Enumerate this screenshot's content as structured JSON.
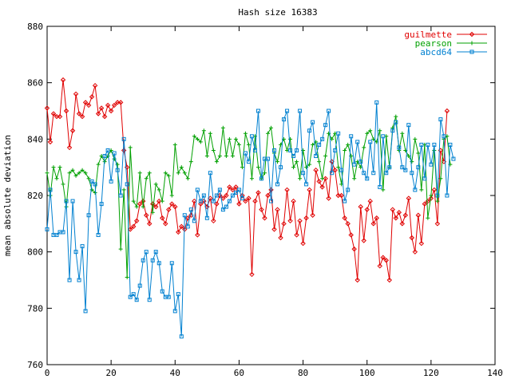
{
  "chart_data": {
    "type": "line",
    "title": "Hash size 16383",
    "xlabel": "",
    "ylabel": "mean absolute deviation",
    "xlim": [
      0,
      140
    ],
    "ylim": [
      760,
      880
    ],
    "xticks": [
      0,
      20,
      40,
      60,
      80,
      100,
      120,
      140
    ],
    "yticks": [
      760,
      780,
      800,
      820,
      840,
      860,
      880
    ],
    "grid": false,
    "legend_position": "top-right",
    "series": [
      {
        "name": "guilmette",
        "color": "#e00000",
        "marker": "diamond",
        "values": [
          851,
          839,
          849,
          848,
          848,
          861,
          850,
          837,
          843,
          856,
          849,
          848,
          853,
          852,
          855,
          859,
          849,
          851,
          848,
          852,
          850,
          852,
          853,
          853,
          836,
          830,
          808,
          809,
          811,
          817,
          818,
          813,
          810,
          817,
          816,
          818,
          812,
          810,
          815,
          817,
          816,
          807,
          809,
          808,
          812,
          813,
          818,
          806,
          817,
          818,
          816,
          819,
          811,
          817,
          820,
          819,
          820,
          823,
          822,
          823,
          817,
          820,
          818,
          819,
          792,
          818,
          821,
          815,
          812,
          820,
          822,
          808,
          815,
          805,
          810,
          822,
          811,
          818,
          806,
          811,
          803,
          812,
          822,
          813,
          829,
          825,
          823,
          826,
          819,
          832,
          829,
          820,
          820,
          812,
          810,
          806,
          801,
          790,
          816,
          804,
          815,
          818,
          810,
          812,
          795,
          798,
          797,
          790,
          815,
          812,
          814,
          810,
          813,
          819,
          805,
          800,
          813,
          803,
          817,
          818,
          819,
          822,
          810,
          836,
          832,
          850
        ]
      },
      {
        "name": "pearson",
        "color": "#00a000",
        "marker": "plus",
        "values": [
          828,
          820,
          830,
          826,
          830,
          824,
          816,
          828,
          829,
          827,
          828,
          829,
          828,
          826,
          822,
          821,
          831,
          834,
          832,
          834,
          836,
          833,
          831,
          801,
          822,
          791,
          837,
          818,
          816,
          828,
          816,
          826,
          828,
          814,
          824,
          822,
          818,
          828,
          827,
          820,
          838,
          828,
          830,
          828,
          826,
          832,
          841,
          840,
          839,
          843,
          834,
          842,
          836,
          832,
          834,
          844,
          834,
          840,
          834,
          840,
          838,
          830,
          842,
          838,
          826,
          841,
          830,
          826,
          828,
          842,
          844,
          835,
          832,
          838,
          840,
          836,
          840,
          830,
          832,
          826,
          836,
          830,
          831,
          838,
          839,
          832,
          826,
          834,
          842,
          840,
          842,
          830,
          824,
          836,
          838,
          834,
          826,
          832,
          830,
          837,
          842,
          843,
          840,
          839,
          843,
          822,
          841,
          830,
          844,
          848,
          836,
          842,
          836,
          834,
          832,
          840,
          835,
          822,
          838,
          812,
          820,
          836,
          818,
          826,
          840,
          841,
          831
        ]
      },
      {
        "name": "abcd64",
        "color": "#0080d0",
        "marker": "square",
        "values": [
          808,
          822,
          806,
          806,
          807,
          807,
          818,
          790,
          818,
          800,
          790,
          802,
          779,
          813,
          825,
          824,
          806,
          817,
          834,
          836,
          825,
          835,
          829,
          820,
          840,
          824,
          784,
          785,
          783,
          788,
          797,
          800,
          783,
          797,
          800,
          796,
          786,
          784,
          784,
          796,
          779,
          785,
          770,
          813,
          809,
          815,
          811,
          822,
          818,
          820,
          812,
          828,
          818,
          820,
          822,
          815,
          816,
          818,
          820,
          821,
          822,
          819,
          835,
          832,
          841,
          836,
          850,
          826,
          833,
          833,
          818,
          836,
          824,
          830,
          847,
          850,
          836,
          834,
          836,
          850,
          828,
          824,
          843,
          846,
          834,
          838,
          840,
          845,
          850,
          828,
          836,
          842,
          829,
          818,
          822,
          841,
          831,
          839,
          832,
          828,
          826,
          839,
          828,
          853,
          823,
          841,
          828,
          830,
          843,
          846,
          837,
          830,
          829,
          845,
          828,
          822,
          830,
          838,
          826,
          838,
          831,
          838,
          820,
          847,
          841,
          820,
          838,
          833
        ]
      }
    ]
  }
}
